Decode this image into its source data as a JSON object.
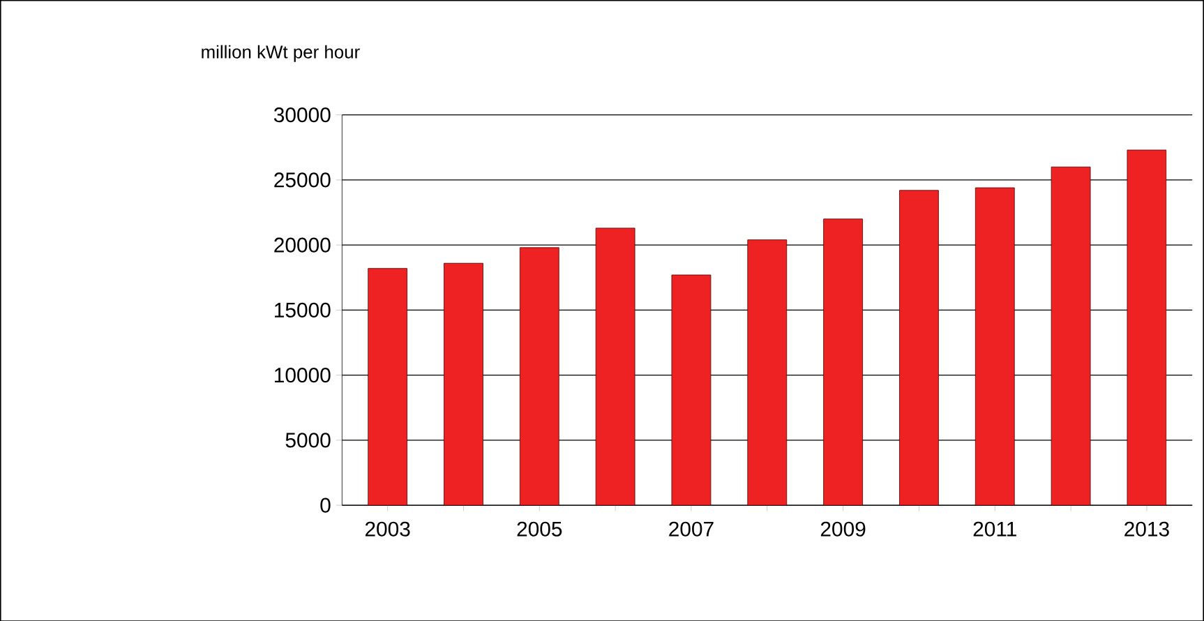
{
  "chart_data": {
    "type": "bar",
    "ylabel": "million kWt per hour",
    "categories": [
      "2003",
      null,
      "2005",
      null,
      "2007",
      null,
      "2009",
      null,
      "2011",
      null,
      "2013"
    ],
    "values": [
      18200,
      18600,
      19800,
      21300,
      17700,
      20400,
      22000,
      24200,
      24400,
      26000,
      27300
    ],
    "color": "#ee2222",
    "ylim": [
      0,
      30000
    ],
    "yticks": [
      0,
      5000,
      10000,
      15000,
      20000,
      25000,
      30000
    ],
    "grid": "y"
  }
}
